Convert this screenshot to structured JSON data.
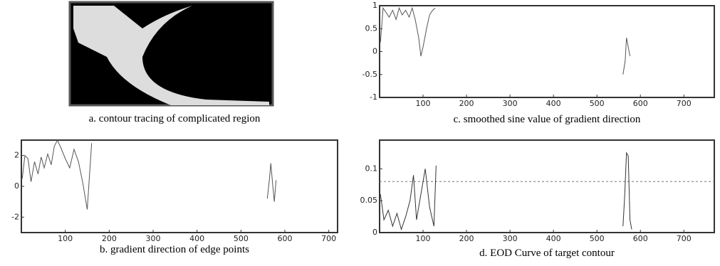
{
  "chart_data": [
    {
      "type": "image",
      "caption": "a. contour tracing of complicated region"
    },
    {
      "type": "line",
      "caption": "b. gradient direction of edge points",
      "xlim": [
        0,
        720
      ],
      "ylim": [
        -3,
        3
      ],
      "xticks": [
        100,
        200,
        300,
        400,
        500,
        600,
        700
      ],
      "yticks": [
        -2,
        0,
        2
      ],
      "series": [
        {
          "color": "#555",
          "x": [
            2,
            8,
            15,
            22,
            30,
            38,
            45,
            52,
            60,
            68,
            75,
            82,
            90,
            100,
            110,
            120,
            130,
            140,
            150,
            160,
            300,
            560,
            565,
            568,
            572,
            576,
            580
          ],
          "values": [
            0.5,
            2,
            1.8,
            0.3,
            1.6,
            0.8,
            1.9,
            1.2,
            2.1,
            1.4,
            2.6,
            3,
            2.5,
            1.8,
            1.2,
            2.4,
            1.6,
            0.2,
            -1.5,
            2.8,
            null,
            -0.8,
            0.5,
            1.5,
            0.2,
            -1,
            0.4
          ]
        }
      ]
    },
    {
      "type": "line",
      "caption": "c. smoothed sine value of gradient direction",
      "xlim": [
        0,
        770
      ],
      "ylim": [
        -1,
        1
      ],
      "xticks": [
        100,
        200,
        300,
        400,
        500,
        600,
        700
      ],
      "yticks": [
        -1,
        -0.5,
        0,
        0.5,
        1
      ],
      "series": [
        {
          "color": "#555",
          "x": [
            2,
            8,
            15,
            22,
            30,
            38,
            45,
            52,
            60,
            68,
            75,
            82,
            90,
            95,
            100,
            108,
            115,
            122,
            128,
            300,
            560,
            565,
            568,
            572,
            576
          ],
          "values": [
            0.2,
            0.95,
            0.85,
            0.75,
            0.9,
            0.7,
            0.95,
            0.8,
            0.9,
            0.75,
            0.95,
            0.7,
            0.3,
            -0.1,
            0.1,
            0.5,
            0.8,
            0.9,
            0.95,
            null,
            -0.5,
            -0.2,
            0.3,
            0.1,
            -0.1
          ]
        }
      ]
    },
    {
      "type": "line",
      "caption": "d. EOD Curve of target contour",
      "xlim": [
        0,
        770
      ],
      "ylim": [
        0,
        0.145
      ],
      "xticks": [
        100,
        200,
        300,
        400,
        500,
        600,
        700
      ],
      "yticks": [
        0,
        0.05,
        0.1
      ],
      "threshold": 0.08,
      "series": [
        {
          "color": "#333",
          "x": [
            2,
            10,
            20,
            30,
            40,
            50,
            60,
            70,
            78,
            85,
            95,
            105,
            115,
            125,
            130,
            300,
            560,
            564,
            568,
            572,
            576,
            580
          ],
          "values": [
            0.06,
            0.02,
            0.035,
            0.01,
            0.03,
            0.005,
            0.025,
            0.05,
            0.09,
            0.02,
            0.06,
            0.1,
            0.04,
            0.01,
            0.105,
            null,
            0.01,
            0.06,
            0.125,
            0.12,
            0.02,
            0.005
          ]
        }
      ]
    }
  ]
}
